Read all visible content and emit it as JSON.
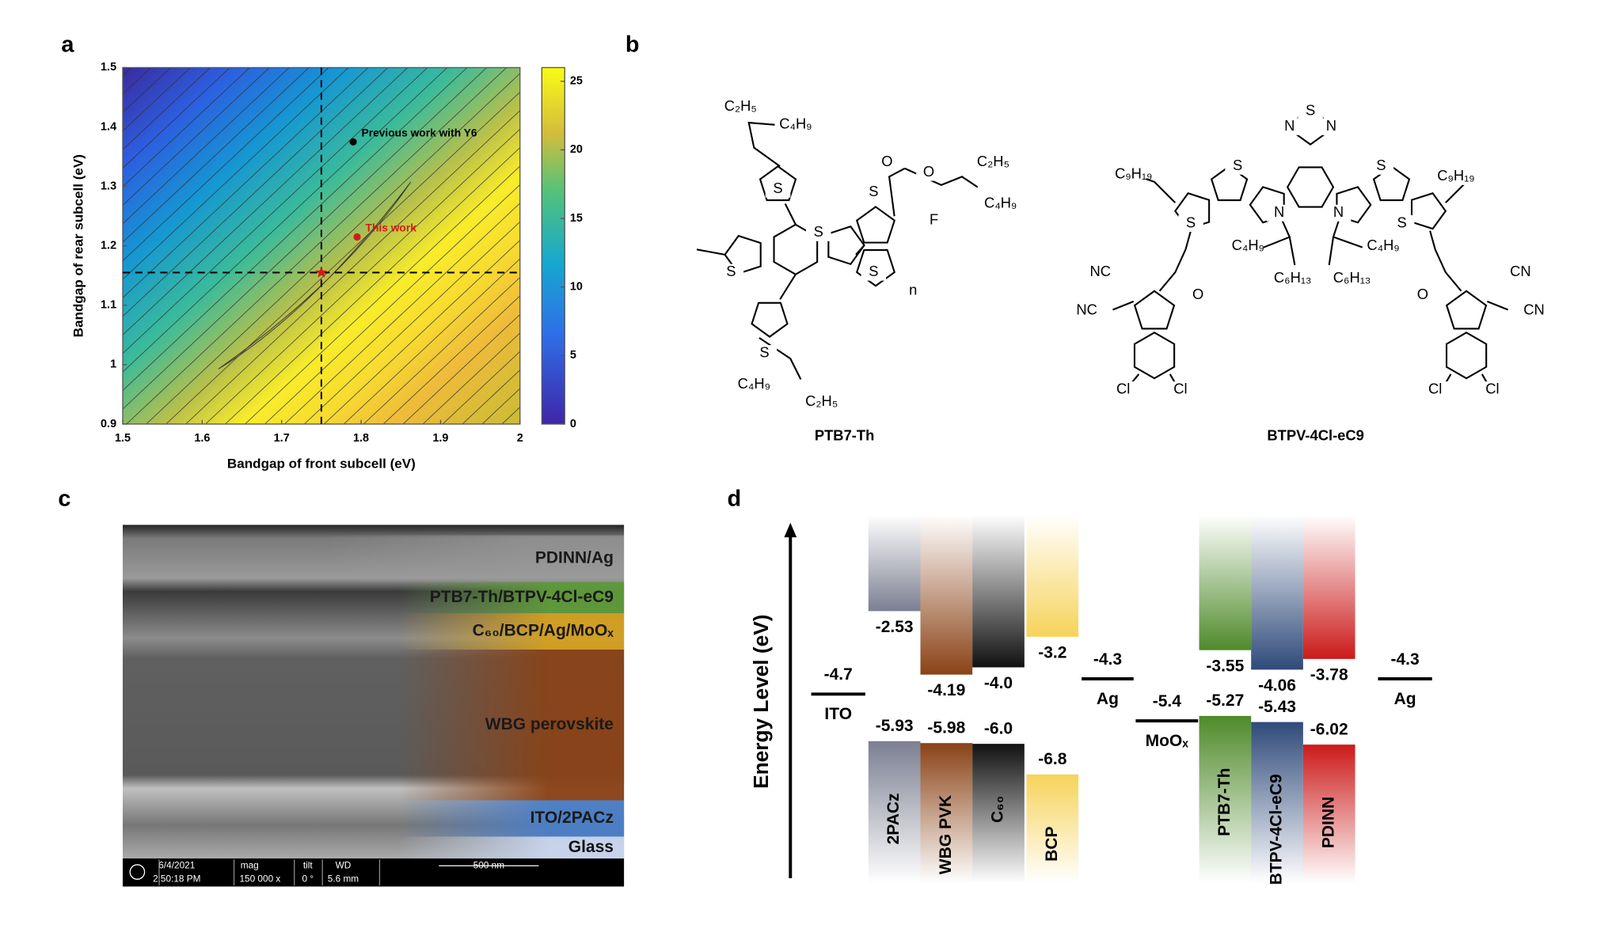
{
  "panel_labels": [
    "a",
    "b",
    "c",
    "d"
  ],
  "chart_data": {
    "type": "contour",
    "xlabel": "Bandgap of front subcell (eV)",
    "ylabel": "Bandgap of rear subcell (eV)",
    "xlim": [
      1.5,
      2
    ],
    "xticks": [
      1.5,
      1.6,
      1.7,
      1.8,
      1.9,
      2
    ],
    "ylim": [
      0.9,
      1.5
    ],
    "yticks": [
      0.9,
      1,
      1.1,
      1.2,
      1.3,
      1.4,
      1.5
    ],
    "colorbar": {
      "lim": [
        0,
        26
      ],
      "ticks": [
        0,
        5,
        10,
        15,
        20,
        25
      ]
    },
    "points": [
      {
        "label": "Previous work with Y6",
        "x": 1.79,
        "y": 1.375,
        "color": "#000000"
      },
      {
        "label": "This work",
        "x": 1.795,
        "y": 1.215,
        "color": "#d01c1c"
      }
    ],
    "optimum": {
      "x": 1.75,
      "y": 1.155,
      "color": "#d01c1c"
    }
  },
  "molecules": [
    {
      "name": "PTB7-Th",
      "atoms": [
        "C₂H₅",
        "C₄H₉",
        "S",
        "S",
        "S",
        "S",
        "S",
        "O",
        "O",
        "C₂H₅",
        "C₄H₉",
        "F",
        "n",
        "S",
        "C₄H₉",
        "C₂H₅"
      ]
    },
    {
      "name": "BTPV-4Cl-eC9",
      "atoms": [
        "S",
        "N",
        "N",
        "C₉H₁₉",
        "C₉H₁₉",
        "S",
        "S",
        "S",
        "S",
        "N",
        "N",
        "C₄H₉",
        "C₆H₁₃",
        "C₄H₉",
        "C₆H₁₃",
        "NC",
        "NC",
        "O",
        "CN",
        "CN",
        "O",
        "Cl",
        "Cl",
        "Cl",
        "Cl"
      ]
    }
  ],
  "sem": {
    "layers": [
      {
        "label": "PDINN/Ag",
        "color": "#9a9a9a"
      },
      {
        "label": "PTB7-Th/BTPV-4Cl-eC9",
        "color": "#5f9a3a"
      },
      {
        "label": "C₆₀/BCP/Ag/MoOₓ",
        "color": "#d4a020"
      },
      {
        "label": "WBG perovskite",
        "color": "#8a4216"
      },
      {
        "label": "ITO/2PACz",
        "color": "#4a7ec8"
      },
      {
        "label": "Glass",
        "color": "#c8d6ee"
      }
    ],
    "info": [
      "6/4/2021",
      "2:50:18 PM",
      "mag",
      "150 000 x",
      "tilt",
      "0 °",
      "WD",
      "5.6 mm",
      "500 nm"
    ]
  },
  "energy_diagram": {
    "axis_label": "Energy Level (eV)",
    "materials": [
      {
        "name": "2PACz",
        "lumo": "-2.53",
        "homo": "-5.93",
        "color": "#7c7f92"
      },
      {
        "name": "WBG PVK",
        "lumo": "-4.19",
        "homo": "-5.98",
        "color": "#8a4216"
      },
      {
        "name": "C₆₀",
        "lumo": "-4.0",
        "homo": "-6.0",
        "color": "#111111"
      },
      {
        "name": "BCP",
        "lumo": "-3.2",
        "homo": "-6.8",
        "color": "#f7d35a"
      },
      {
        "name": "PTB7-Th",
        "lumo": "-3.55",
        "homo": "-5.27",
        "color": "#4f8a2a"
      },
      {
        "name": "BTPV-4Cl-eC9",
        "lumo": "-4.06",
        "homo": "-5.43",
        "color": "#2f4a7a"
      },
      {
        "name": "PDINN",
        "lumo": "-3.78",
        "homo": "-6.02",
        "color": "#cc1a1a"
      }
    ],
    "electrodes": [
      {
        "name": "ITO",
        "level": "-4.7"
      },
      {
        "name": "Ag",
        "level": "-4.3"
      },
      {
        "name": "MoOₓ",
        "level": "-5.4"
      },
      {
        "name": "Ag",
        "level": "-4.3"
      }
    ]
  }
}
